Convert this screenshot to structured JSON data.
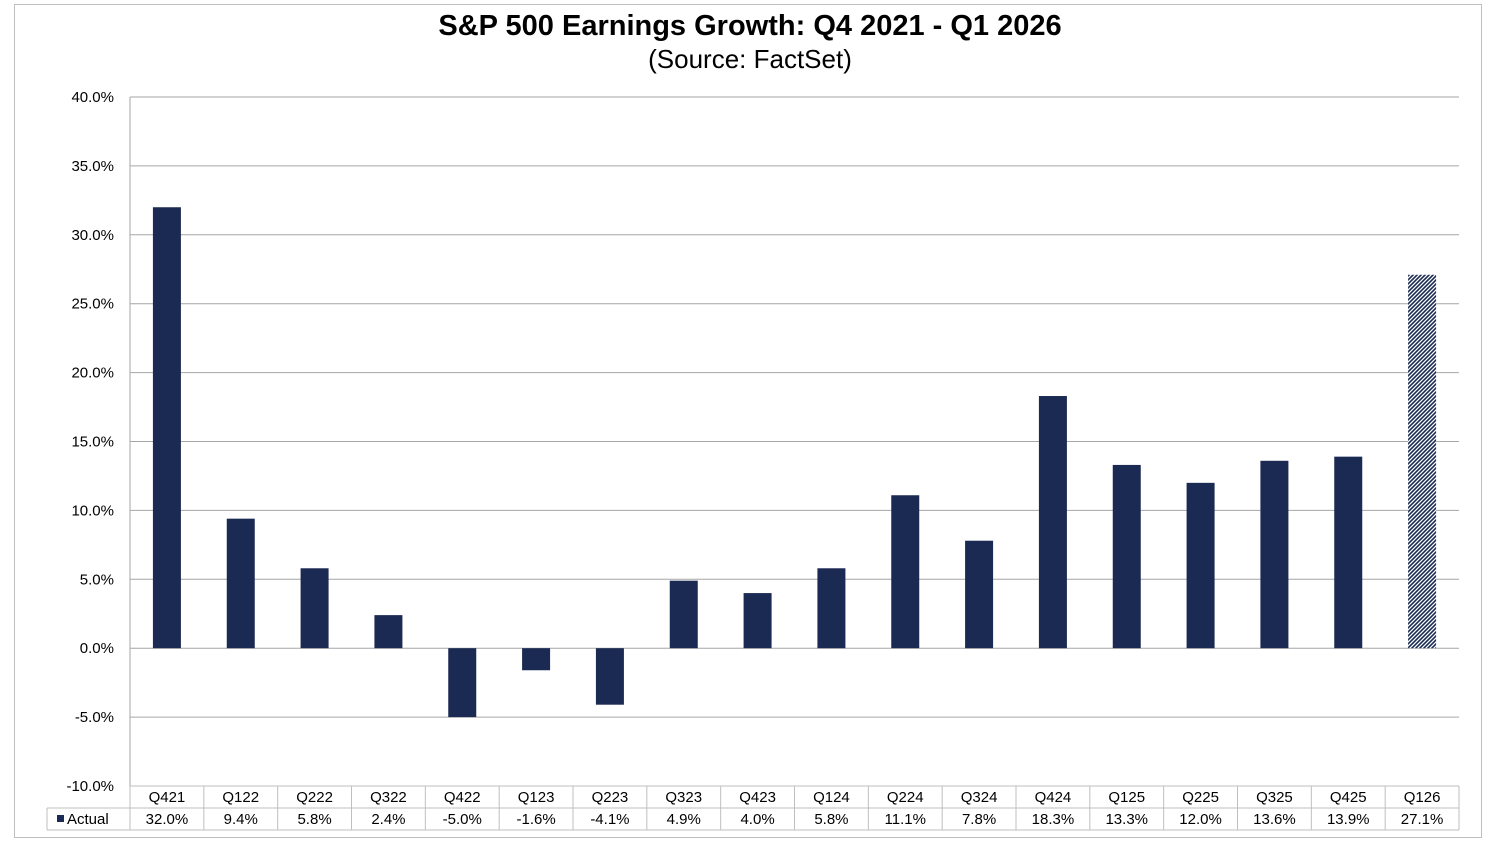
{
  "chart_data": {
    "type": "bar",
    "title": "S&P 500 Earnings Growth:  Q4 2021 - Q1 2026",
    "subtitle": "(Source: FactSet)",
    "categories": [
      "Q421",
      "Q122",
      "Q222",
      "Q322",
      "Q422",
      "Q123",
      "Q223",
      "Q323",
      "Q423",
      "Q124",
      "Q224",
      "Q324",
      "Q424",
      "Q125",
      "Q225",
      "Q325",
      "Q425",
      "Q126"
    ],
    "series": [
      {
        "name": "Actual",
        "values": [
          32.0,
          9.4,
          5.8,
          2.4,
          -5.0,
          -1.6,
          -4.1,
          4.9,
          4.0,
          5.8,
          11.1,
          7.8,
          18.3,
          13.3,
          12.0,
          13.6,
          13.9,
          27.1
        ],
        "labels": [
          "32.0%",
          "9.4%",
          "5.8%",
          "2.4%",
          "-5.0%",
          "-1.6%",
          "-4.1%",
          "4.9%",
          "4.0%",
          "5.8%",
          "11.1%",
          "7.8%",
          "18.3%",
          "13.3%",
          "12.0%",
          "13.6%",
          "13.9%",
          "27.1%"
        ],
        "color": "#1b2a52",
        "estimate_index": 17,
        "estimate_color": "#8a93a8"
      }
    ],
    "ylim": [
      -10,
      40
    ],
    "yticks": [
      "-10.0%",
      "-5.0%",
      "0.0%",
      "5.0%",
      "10.0%",
      "15.0%",
      "20.0%",
      "25.0%",
      "30.0%",
      "35.0%",
      "40.0%"
    ],
    "ytick_values": [
      -10,
      -5,
      0,
      5,
      10,
      15,
      20,
      25,
      30,
      35,
      40
    ],
    "grid": true,
    "legend": "data-table-bottom",
    "xlabel": "",
    "ylabel": ""
  }
}
